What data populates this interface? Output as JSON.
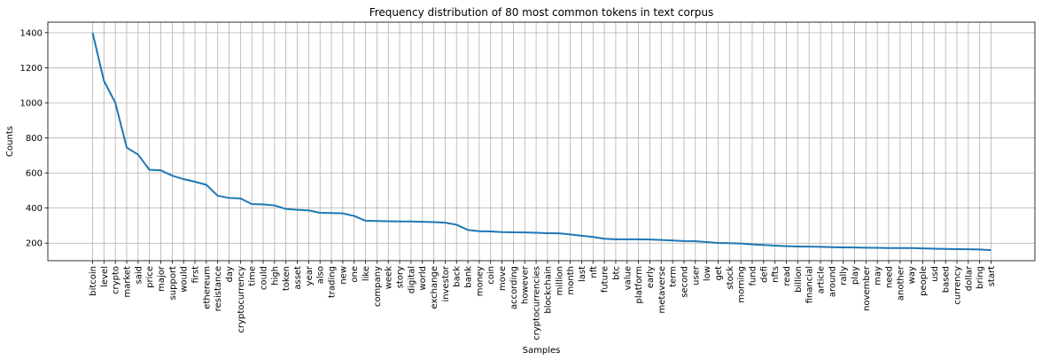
{
  "chart_data": {
    "type": "line",
    "title": "Frequency distribution of 80 most common tokens in text corpus",
    "xlabel": "Samples",
    "ylabel": "Counts",
    "ylim": [
      100,
      1460
    ],
    "yticks": [
      200,
      400,
      600,
      800,
      1000,
      1200,
      1400
    ],
    "grid": true,
    "color": "#1f77b4",
    "categories": [
      "bitcoin",
      "level",
      "crypto",
      "market",
      "said",
      "price",
      "major",
      "support",
      "would",
      "first",
      "ethereum",
      "resistance",
      "day",
      "cryptocurrency",
      "time",
      "could",
      "high",
      "token",
      "asset",
      "year",
      "also",
      "trading",
      "new",
      "one",
      "like",
      "company",
      "week",
      "story",
      "digital",
      "world",
      "exchange",
      "investor",
      "back",
      "bank",
      "money",
      "coin",
      "move",
      "according",
      "however",
      "cryptocurrencies",
      "blockchain",
      "million",
      "month",
      "last",
      "nft",
      "future",
      "btc",
      "value",
      "platform",
      "early",
      "metaverse",
      "term",
      "second",
      "user",
      "low",
      "get",
      "stock",
      "morning",
      "fund",
      "defi",
      "nfts",
      "read",
      "billion",
      "financial",
      "article",
      "around",
      "rally",
      "play",
      "november",
      "may",
      "need",
      "another",
      "way",
      "people",
      "usd",
      "based",
      "currency",
      "dollar",
      "bring",
      "start"
    ],
    "values": [
      1400,
      1125,
      1000,
      745,
      705,
      618,
      615,
      585,
      565,
      550,
      533,
      470,
      458,
      455,
      423,
      421,
      415,
      395,
      390,
      387,
      373,
      372,
      370,
      355,
      328,
      326,
      325,
      324,
      324,
      322,
      320,
      317,
      305,
      275,
      268,
      267,
      263,
      262,
      261,
      259,
      257,
      256,
      250,
      242,
      235,
      225,
      222,
      222,
      222,
      221,
      218,
      215,
      212,
      211,
      206,
      201,
      200,
      198,
      193,
      190,
      186,
      183,
      181,
      180,
      179,
      177,
      176,
      175,
      174,
      173,
      172,
      172,
      172,
      170,
      168,
      167,
      166,
      165,
      164,
      160
    ]
  }
}
